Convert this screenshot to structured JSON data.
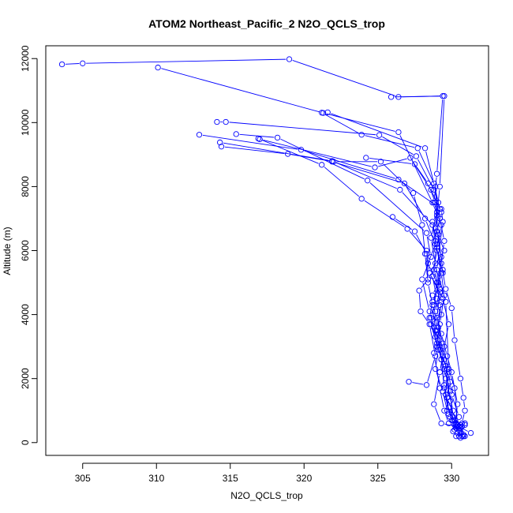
{
  "chart_data": {
    "type": "line",
    "title": "ATOM2 Northeast_Pacific_2 N2O_QCLS_trop",
    "xlabel": "N2O_QCLS_trop",
    "ylabel": "Altitude (m)",
    "xlim": [
      302.5,
      332.5
    ],
    "ylim": [
      -400,
      12400
    ],
    "xticks": [
      305,
      310,
      315,
      320,
      325,
      330
    ],
    "yticks": [
      0,
      2000,
      4000,
      6000,
      8000,
      10000,
      12000
    ],
    "grid": false,
    "series_color": "#0000ff",
    "marker": "open-circle",
    "series": [
      {
        "points": [
          [
            303.6,
            11820
          ],
          [
            305.0,
            11850
          ],
          [
            319.0,
            11980
          ],
          [
            326.4,
            10800
          ],
          [
            329.4,
            10830
          ],
          [
            329.0,
            8400
          ],
          [
            328.8,
            7500
          ],
          [
            329.2,
            7000
          ],
          [
            329.5,
            6300
          ],
          [
            329.3,
            5600
          ],
          [
            329.6,
            4800
          ],
          [
            330.0,
            4200
          ],
          [
            330.2,
            3200
          ],
          [
            330.6,
            2000
          ],
          [
            330.8,
            1400
          ],
          [
            330.9,
            1000
          ],
          [
            330.7,
            600
          ],
          [
            330.5,
            400
          ],
          [
            330.3,
            200
          ],
          [
            330.6,
            150
          ]
        ]
      },
      {
        "points": [
          [
            310.1,
            11720
          ],
          [
            321.3,
            10300
          ],
          [
            326.4,
            9700
          ],
          [
            328.7,
            7500
          ],
          [
            329.3,
            6800
          ],
          [
            329.0,
            6100
          ],
          [
            329.4,
            5300
          ],
          [
            328.7,
            4600
          ],
          [
            329.3,
            4000
          ],
          [
            328.6,
            3700
          ],
          [
            329.1,
            2900
          ],
          [
            328.9,
            2300
          ],
          [
            329.4,
            1600
          ],
          [
            329.7,
            1000
          ],
          [
            330.2,
            700
          ],
          [
            330.4,
            550
          ],
          [
            330.4,
            300
          ],
          [
            330.5,
            200
          ]
        ]
      },
      {
        "points": [
          [
            321.6,
            10320
          ],
          [
            328.2,
            9200
          ],
          [
            328.8,
            8100
          ],
          [
            329.1,
            7500
          ],
          [
            328.9,
            6700
          ],
          [
            329.5,
            6000
          ],
          [
            328.5,
            5300
          ],
          [
            329.4,
            4500
          ],
          [
            329.8,
            3700
          ],
          [
            329.5,
            3000
          ],
          [
            329.2,
            2200
          ],
          [
            328.8,
            1200
          ],
          [
            329.3,
            600
          ],
          [
            330.4,
            500
          ],
          [
            330.6,
            450
          ],
          [
            330.8,
            250
          ]
        ]
      },
      {
        "points": [
          [
            321.2,
            10310
          ],
          [
            323.9,
            9620
          ],
          [
            327.7,
            9200
          ],
          [
            328.9,
            8000
          ],
          [
            329.0,
            7200
          ],
          [
            328.6,
            6400
          ],
          [
            328.9,
            5600
          ],
          [
            329.2,
            4800
          ],
          [
            329.3,
            4400
          ],
          [
            329.1,
            3600
          ],
          [
            329.5,
            2600
          ],
          [
            329.7,
            2300
          ],
          [
            329.6,
            1500
          ],
          [
            329.9,
            800
          ],
          [
            330.6,
            550
          ],
          [
            330.7,
            200
          ]
        ]
      },
      {
        "points": [
          [
            314.1,
            10020
          ],
          [
            314.7,
            10020
          ],
          [
            325.1,
            9610
          ],
          [
            327.6,
            8950
          ],
          [
            328.8,
            7900
          ],
          [
            329.3,
            7200
          ],
          [
            329.0,
            6600
          ],
          [
            329.3,
            5800
          ],
          [
            329.1,
            5000
          ],
          [
            328.8,
            4300
          ],
          [
            329.0,
            3500
          ],
          [
            329.4,
            2700
          ],
          [
            329.9,
            1900
          ],
          [
            329.7,
            1400
          ],
          [
            330.4,
            550
          ],
          [
            330.9,
            600
          ]
        ]
      },
      {
        "points": [
          [
            312.9,
            9620
          ],
          [
            319.8,
            9150
          ],
          [
            326.4,
            8220
          ],
          [
            329.3,
            7300
          ],
          [
            329.4,
            6900
          ],
          [
            329.0,
            5400
          ],
          [
            329.6,
            4400
          ],
          [
            329.8,
            2300
          ],
          [
            330.2,
            1700
          ],
          [
            330.4,
            550
          ],
          [
            330.8,
            200
          ]
        ]
      },
      {
        "points": [
          [
            314.3,
            9380
          ],
          [
            321.9,
            8800
          ],
          [
            326.5,
            7900
          ],
          [
            328.7,
            6800
          ],
          [
            329.0,
            6000
          ],
          [
            328.7,
            5200
          ],
          [
            329.0,
            4500
          ],
          [
            328.6,
            3900
          ],
          [
            329.1,
            3200
          ],
          [
            328.8,
            2800
          ],
          [
            329.2,
            1700
          ],
          [
            329.5,
            1000
          ],
          [
            329.8,
            600
          ],
          [
            330.5,
            500
          ],
          [
            331.3,
            300
          ]
        ]
      },
      {
        "points": [
          [
            314.4,
            9250
          ],
          [
            318.9,
            9020
          ],
          [
            322.0,
            8780
          ],
          [
            325.2,
            8780
          ],
          [
            327.4,
            7800
          ],
          [
            328.0,
            6800
          ],
          [
            328.2,
            5900
          ],
          [
            328.4,
            5000
          ],
          [
            328.7,
            4300
          ],
          [
            328.9,
            3500
          ],
          [
            329.2,
            2900
          ],
          [
            329.6,
            2000
          ],
          [
            330.1,
            1000
          ],
          [
            330.3,
            600
          ],
          [
            330.6,
            500
          ]
        ]
      },
      {
        "points": [
          [
            315.4,
            9640
          ],
          [
            318.2,
            9530
          ],
          [
            324.3,
            8190
          ],
          [
            328.3,
            6550
          ],
          [
            328.6,
            5800
          ],
          [
            328.0,
            5100
          ],
          [
            328.5,
            4100
          ],
          [
            328.8,
            3600
          ],
          [
            329.0,
            3000
          ],
          [
            329.6,
            2400
          ],
          [
            329.9,
            1300
          ],
          [
            330.1,
            700
          ],
          [
            330.2,
            550
          ],
          [
            330.3,
            450
          ]
        ]
      },
      {
        "points": [
          [
            316.9,
            9500
          ],
          [
            321.2,
            8680
          ],
          [
            323.9,
            7620
          ],
          [
            327.0,
            6680
          ],
          [
            328.3,
            6000
          ],
          [
            328.5,
            5300
          ],
          [
            329.2,
            4700
          ],
          [
            329.0,
            3900
          ],
          [
            329.4,
            3100
          ],
          [
            329.8,
            2200
          ],
          [
            330.0,
            1500
          ],
          [
            330.5,
            800
          ],
          [
            330.4,
            550
          ],
          [
            330.1,
            350
          ]
        ]
      },
      {
        "points": [
          [
            317.0,
            9480
          ],
          [
            324.8,
            8600
          ],
          [
            327.2,
            8900
          ],
          [
            328.6,
            7900
          ],
          [
            329.2,
            7300
          ],
          [
            328.7,
            6900
          ],
          [
            329.0,
            6200
          ],
          [
            328.8,
            5400
          ],
          [
            329.2,
            4800
          ],
          [
            328.9,
            4100
          ],
          [
            329.3,
            3400
          ],
          [
            329.7,
            2700
          ],
          [
            330.0,
            2200
          ],
          [
            330.4,
            1200
          ],
          [
            330.2,
            400
          ],
          [
            330.8,
            200
          ]
        ]
      },
      {
        "points": [
          [
            325.9,
            10800
          ],
          [
            329.5,
            10830
          ],
          [
            329.2,
            8000
          ],
          [
            329.0,
            7100
          ],
          [
            328.9,
            6300
          ],
          [
            329.3,
            5300
          ],
          [
            329.5,
            4600
          ],
          [
            329.2,
            3700
          ],
          [
            329.0,
            3100
          ],
          [
            329.5,
            2300
          ],
          [
            329.9,
            1600
          ],
          [
            330.1,
            800
          ],
          [
            330.6,
            550
          ],
          [
            330.9,
            200
          ]
        ]
      },
      {
        "points": [
          [
            326.0,
            7050
          ],
          [
            327.5,
            6600
          ],
          [
            328.3,
            5900
          ],
          [
            328.4,
            5100
          ],
          [
            327.8,
            4750
          ],
          [
            327.9,
            4100
          ],
          [
            328.5,
            3700
          ],
          [
            328.9,
            2700
          ],
          [
            328.3,
            1800
          ],
          [
            327.1,
            1900
          ]
        ]
      },
      {
        "points": [
          [
            324.2,
            8900
          ],
          [
            327.5,
            8700
          ],
          [
            328.4,
            8100
          ],
          [
            328.9,
            7500
          ],
          [
            329.1,
            6500
          ],
          [
            329.4,
            5400
          ],
          [
            329.0,
            5000
          ],
          [
            329.2,
            4300
          ],
          [
            329.1,
            3400
          ],
          [
            329.3,
            2600
          ],
          [
            329.5,
            1700
          ],
          [
            329.8,
            900
          ],
          [
            330.3,
            500
          ],
          [
            330.6,
            300
          ],
          [
            330.9,
            550
          ]
        ]
      },
      {
        "points": [
          [
            321.9,
            8780
          ],
          [
            326.8,
            8100
          ],
          [
            328.2,
            7000
          ],
          [
            328.9,
            6200
          ],
          [
            328.4,
            5600
          ],
          [
            329.1,
            4900
          ],
          [
            328.7,
            4400
          ],
          [
            328.5,
            3900
          ],
          [
            328.9,
            3300
          ],
          [
            329.3,
            2600
          ],
          [
            329.5,
            1800
          ],
          [
            329.8,
            1100
          ],
          [
            330.0,
            700
          ],
          [
            330.3,
            550
          ],
          [
            330.7,
            500
          ]
        ]
      }
    ]
  }
}
